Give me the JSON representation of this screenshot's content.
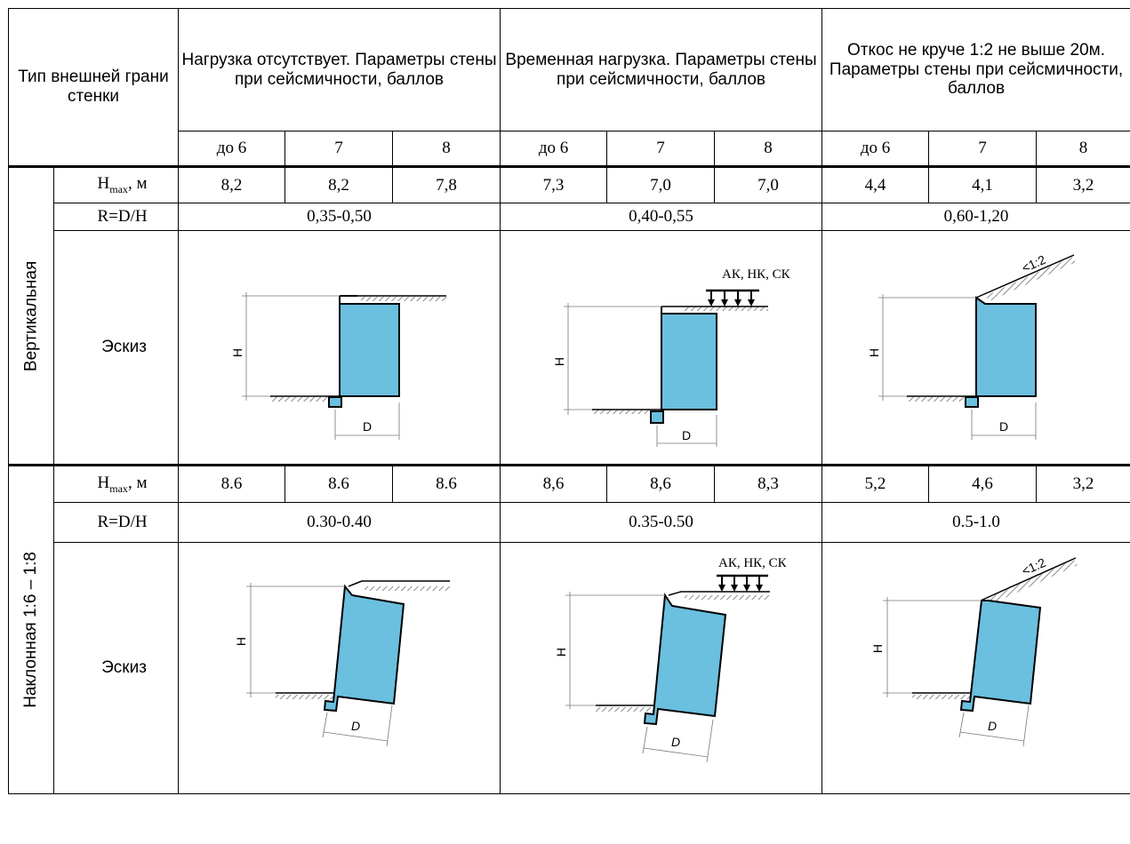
{
  "header": {
    "type_label": "Тип внешней грани стенки",
    "col_groups": [
      "Нагрузка отсутствует. Параметры стены при сейсмичности, баллов",
      "Временная нагрузка. Параметры стены при сейсмичности, баллов",
      "Откос не круче 1:2 не выше 20м. Параметры стены при сейсмичности, баллов"
    ],
    "seismic": [
      "до 6",
      "7",
      "8",
      "до 6",
      "7",
      "8",
      "до 6",
      "7",
      "8"
    ]
  },
  "sections": [
    {
      "name": "Вертикальная",
      "hmax_label_main": "H",
      "hmax_label_sub": "max",
      "hmax_label_unit": ", м",
      "hmax": [
        "8,2",
        "8,2",
        "7,8",
        "7,3",
        "7,0",
        "7,0",
        "4,4",
        "4,1",
        "3,2"
      ],
      "r_label": "R=D/H",
      "r": [
        "0,35-0,50",
        "0,40-0,55",
        "0,60-1,20"
      ],
      "sketch_label": "Эскиз"
    },
    {
      "name": "Наклонная 1:6 – 1:8",
      "hmax_label_main": "H",
      "hmax_label_sub": "max",
      "hmax_label_unit": ", м",
      "hmax": [
        "8.6",
        "8.6",
        "8.6",
        "8,6",
        "8,6",
        "8,3",
        "5,2",
        "4,6",
        "3,2"
      ],
      "r_label": "R=D/H",
      "r": [
        "0.30-0.40",
        "0.35-0.50",
        "0.5-1.0"
      ],
      "sketch_label": "Эскиз"
    }
  ],
  "sketch_text": {
    "load_label": "АК, НК, СК",
    "slope_label": "<1:2",
    "h_dim": "H",
    "d_dim": "D"
  },
  "colors": {
    "wall_fill": "#6bbfdf",
    "line": "#000000",
    "hatch": "#8a8a8a"
  }
}
